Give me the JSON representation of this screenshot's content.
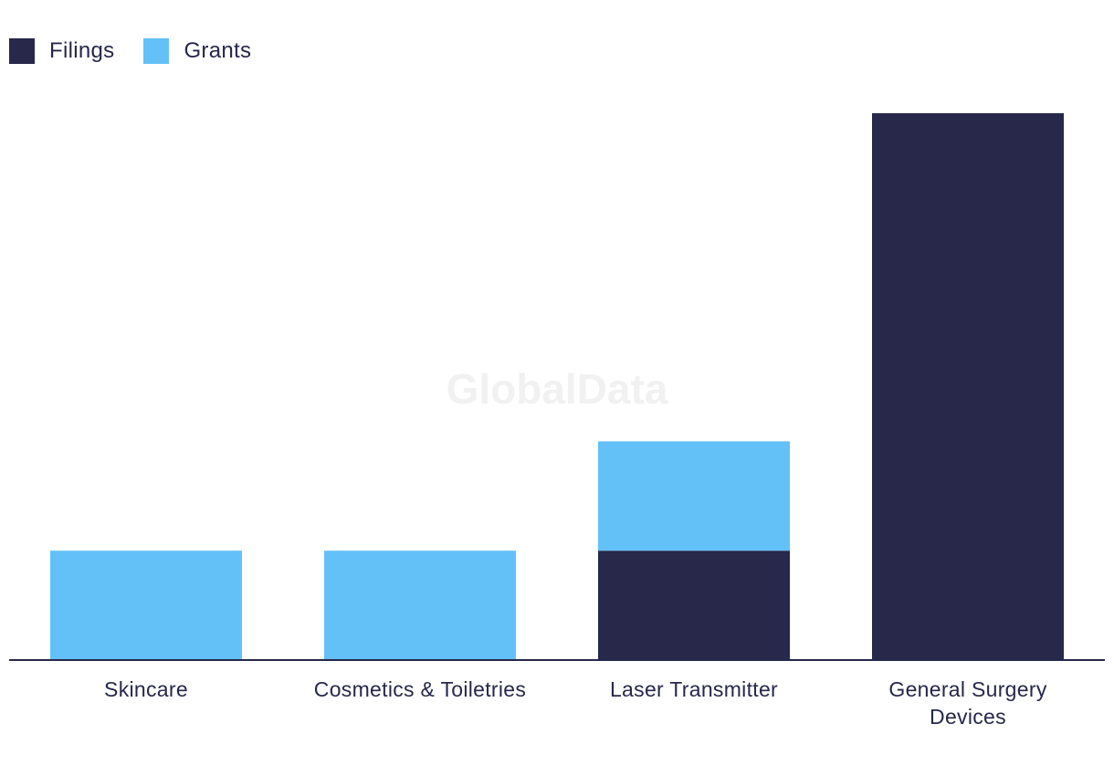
{
  "chart_data": {
    "type": "bar",
    "stacked": true,
    "categories": [
      "Skincare",
      "Cosmetics & Toiletries",
      "Laser Transmitter",
      "General Surgery Devices"
    ],
    "series": [
      {
        "name": "Filings",
        "color": "#27284a",
        "values": [
          0,
          0,
          1,
          5
        ]
      },
      {
        "name": "Grants",
        "color": "#63c1f8",
        "values": [
          1,
          1,
          1,
          0
        ]
      }
    ],
    "ylim": [
      0,
      5
    ],
    "title": "",
    "xlabel": "",
    "ylabel": "",
    "legend": "top-left",
    "grid": false,
    "watermark": "GlobalData"
  }
}
